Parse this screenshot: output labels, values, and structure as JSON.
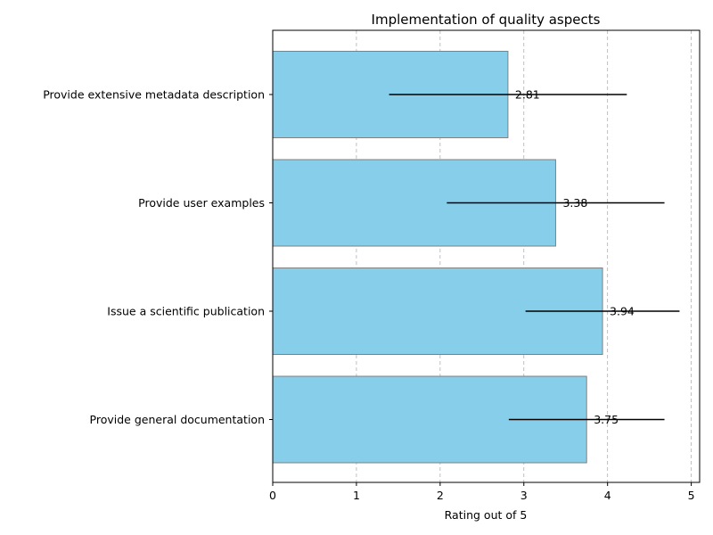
{
  "chart_data": {
    "type": "bar",
    "orientation": "horizontal",
    "title": "Implementation of quality aspects",
    "xlabel": "Rating out of 5",
    "ylabel": "",
    "xlim": [
      0,
      5.1
    ],
    "xticks": [
      0,
      1,
      2,
      3,
      4,
      5
    ],
    "grid": "x-dashed",
    "categories": [
      "Provide extensive metadata description",
      "Provide user examples",
      "Issue a scientific publication",
      "Provide general documentation"
    ],
    "values": [
      2.81,
      3.38,
      3.94,
      3.75
    ],
    "value_labels": [
      "2.81",
      "3.38",
      "3.94",
      "3.75"
    ],
    "errors": [
      1.42,
      1.3,
      0.92,
      0.93
    ],
    "bar_color": "#87ceeb",
    "bar_edge_color": "#808080",
    "error_color": "#000000"
  }
}
